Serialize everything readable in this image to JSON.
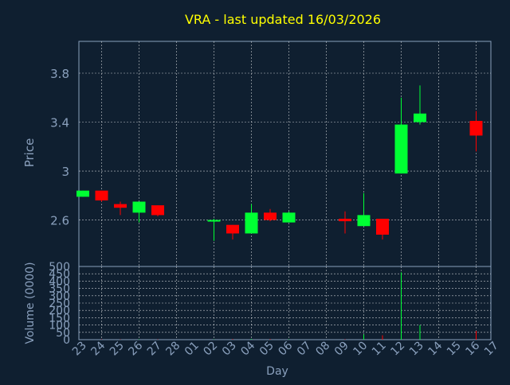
{
  "chart_data": {
    "type": "candlestick",
    "title": "VRA - last updated 16/03/2026",
    "xlabel": "Day",
    "colors": {
      "background": "#0f1f30",
      "axis": "#8aa0bd",
      "grid": "#ffffff",
      "title": "#ffff00",
      "up": "#00ff33",
      "down": "#ff0000"
    },
    "x_ticks": [
      "23",
      "24",
      "25",
      "26",
      "27",
      "28",
      "01",
      "02",
      "03",
      "04",
      "05",
      "06",
      "07",
      "08",
      "09",
      "10",
      "11",
      "12",
      "13",
      "14",
      "15",
      "16",
      "17"
    ],
    "price_panel": {
      "ylabel": "Price",
      "ylim": [
        2.22,
        4.06
      ],
      "ticks": [
        2.6,
        3,
        3.4,
        3.8
      ],
      "tick_labels": [
        "2.6",
        "3",
        "3.4",
        "3.8"
      ],
      "grid": true
    },
    "volume_panel": {
      "ylabel": "Volume (0000)",
      "ylim": [
        0,
        500
      ],
      "ticks": [
        0,
        50,
        100,
        150,
        200,
        250,
        300,
        350,
        400,
        450,
        500
      ],
      "tick_labels": [
        "0",
        "50",
        "100",
        "150",
        "200",
        "250",
        "300",
        "350",
        "400",
        "450",
        "500"
      ],
      "grid": true
    },
    "candles": [
      {
        "day": "23",
        "open": 2.79,
        "close": 2.84,
        "high": 2.84,
        "low": 2.79,
        "volume": 0
      },
      {
        "day": "24",
        "open": 2.84,
        "close": 2.76,
        "high": 2.84,
        "low": 2.75,
        "volume": 2
      },
      {
        "day": "25",
        "open": 2.73,
        "close": 2.7,
        "high": 2.75,
        "low": 2.64,
        "volume": 2
      },
      {
        "day": "26",
        "open": 2.66,
        "close": 2.75,
        "high": 2.75,
        "low": 2.58,
        "volume": 3
      },
      {
        "day": "27",
        "open": 2.72,
        "close": 2.64,
        "high": 2.72,
        "low": 2.63,
        "volume": 2
      },
      {
        "day": "02",
        "open": 2.59,
        "close": 2.6,
        "high": 2.61,
        "low": 2.43,
        "volume": 2
      },
      {
        "day": "03",
        "open": 2.56,
        "close": 2.49,
        "high": 2.56,
        "low": 2.44,
        "volume": 4
      },
      {
        "day": "04",
        "open": 2.49,
        "close": 2.66,
        "high": 2.73,
        "low": 2.49,
        "volume": 5
      },
      {
        "day": "05",
        "open": 2.66,
        "close": 2.6,
        "high": 2.69,
        "low": 2.59,
        "volume": 4
      },
      {
        "day": "06",
        "open": 2.58,
        "close": 2.66,
        "high": 2.67,
        "low": 2.58,
        "volume": 3
      },
      {
        "day": "09",
        "open": 2.61,
        "close": 2.59,
        "high": 2.67,
        "low": 2.49,
        "volume": 3
      },
      {
        "day": "10",
        "open": 2.55,
        "close": 2.64,
        "high": 2.82,
        "low": 2.55,
        "volume": 35
      },
      {
        "day": "11",
        "open": 2.61,
        "close": 2.48,
        "high": 2.61,
        "low": 2.44,
        "volume": 30
      },
      {
        "day": "12",
        "open": 2.98,
        "close": 3.38,
        "high": 3.6,
        "low": 2.98,
        "volume": 460
      },
      {
        "day": "13",
        "open": 3.4,
        "close": 3.47,
        "high": 3.7,
        "low": 3.38,
        "volume": 100
      },
      {
        "day": "16",
        "open": 3.41,
        "close": 3.29,
        "high": 3.49,
        "low": 3.16,
        "volume": 60
      }
    ]
  }
}
